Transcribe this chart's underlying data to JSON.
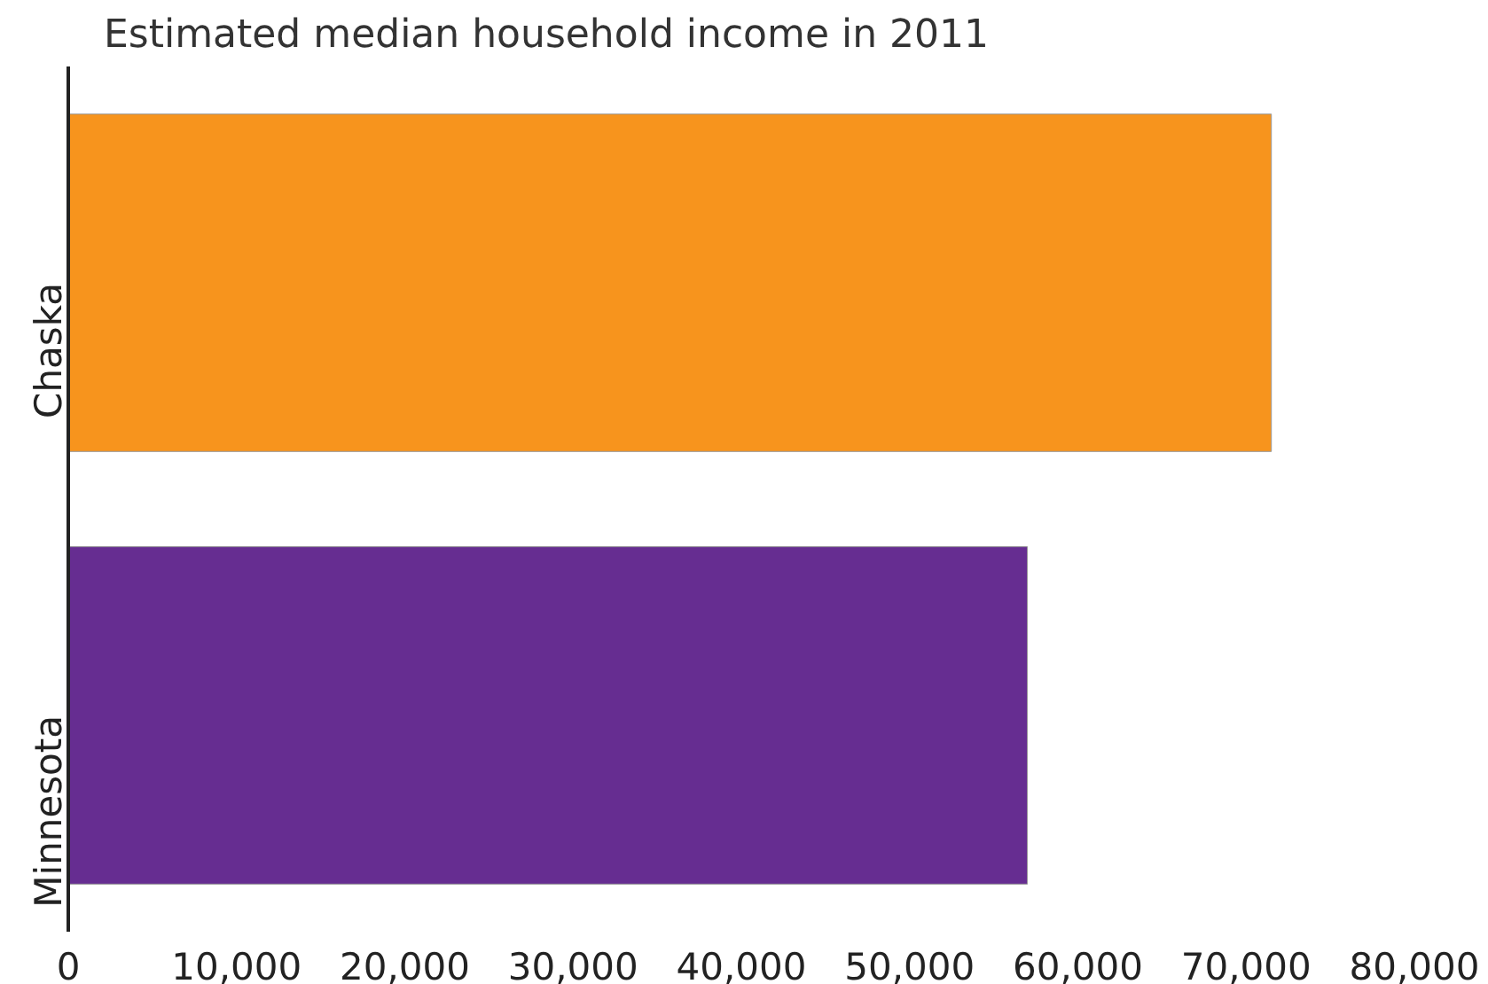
{
  "chart_data": {
    "type": "bar",
    "orientation": "horizontal",
    "title": "Estimated median household income in 2011",
    "categories": [
      "Chaska",
      "Minnesota"
    ],
    "values": [
      71500,
      57000
    ],
    "colors": [
      "#f7941d",
      "#662d91"
    ],
    "xlim": [
      0,
      80000
    ],
    "xticks": [
      0,
      {
        "value": 10000,
        "label": "10,000"
      },
      {
        "value": 20000,
        "label": "20,000"
      },
      {
        "value": 30000,
        "label": "30,000"
      },
      {
        "value": 40000,
        "label": "40,000"
      },
      {
        "value": 50000,
        "label": "50,000"
      },
      {
        "value": 60000,
        "label": "60,000"
      },
      {
        "value": 70000,
        "label": "70,000"
      },
      {
        "value": 80000,
        "label": "80,000"
      }
    ],
    "grid": false
  }
}
